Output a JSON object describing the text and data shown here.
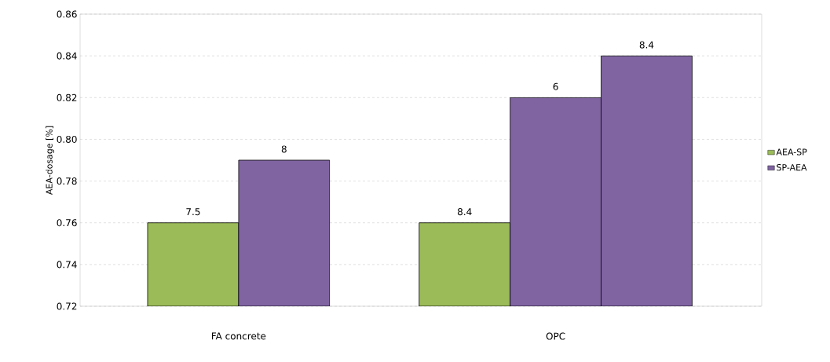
{
  "chart_data": {
    "type": "bar",
    "ylabel": "AEA-dosage [%]",
    "categories": [
      "FA concrete",
      "OPC"
    ],
    "series": [
      {
        "name": "AEA-SP",
        "color": "#9bbb59",
        "values": [
          0.76,
          0.76
        ]
      },
      {
        "name": "SP-AEA",
        "color": "#8064a2",
        "values": [
          0.79,
          0.82
        ]
      },
      {
        "color": "#8064a2",
        "values": [
          null,
          0.84
        ]
      }
    ],
    "annotations": [
      "7.5",
      "8",
      "8.4",
      "6",
      "8.4"
    ],
    "ylim": [
      0.72,
      0.86
    ],
    "yticks": [
      0.72,
      0.74,
      0.76,
      0.78,
      {
        "value": 0.8,
        "label": "0.80"
      },
      0.82,
      0.84,
      0.86
    ],
    "grid": "y",
    "legend": "right"
  }
}
